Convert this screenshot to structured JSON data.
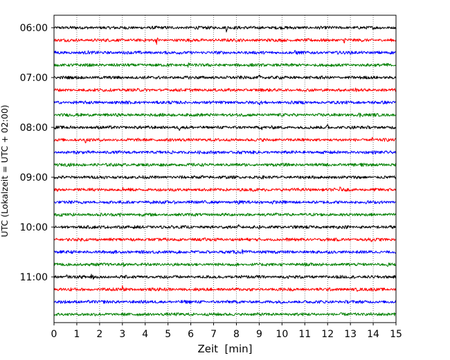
{
  "chart_data": {
    "type": "line",
    "title": "",
    "xlabel": "Zeit  [min]",
    "ylabel": "UTC (Lokalzeit = UTC + 02:00)",
    "xlim": [
      0,
      15
    ],
    "x_ticks": [
      "0",
      "1",
      "2",
      "3",
      "4",
      "5",
      "6",
      "7",
      "8",
      "9",
      "10",
      "11",
      "12",
      "13",
      "14",
      "15"
    ],
    "y_ticks": [
      "06:00",
      "07:00",
      "08:00",
      "09:00",
      "10:00",
      "11:00"
    ],
    "grid": "vertical dotted lines at each minute",
    "trace_colors": [
      "#000000",
      "#ff0000",
      "#0000ff",
      "#008000"
    ],
    "series": [
      {
        "start": "06:00",
        "color": "#000000",
        "events": [
          {
            "x": 7.55,
            "amp": 0.8
          },
          {
            "x": 2.2,
            "amp": 0.3
          },
          {
            "x": 5.2,
            "amp": 0.3
          },
          {
            "x": 9.0,
            "amp": 0.3
          },
          {
            "x": 10.6,
            "amp": 0.3
          }
        ]
      },
      {
        "start": "06:15",
        "color": "#ff0000",
        "events": [
          {
            "x": 4.5,
            "amp": 0.7
          },
          {
            "x": 12.75,
            "amp": 0.7
          },
          {
            "x": 9.3,
            "amp": 0.3
          }
        ]
      },
      {
        "start": "06:30",
        "color": "#0000ff",
        "events": [
          {
            "x": 10.6,
            "amp": 0.7
          },
          {
            "x": 1.5,
            "amp": 0.35
          },
          {
            "x": 6.8,
            "amp": 0.25
          },
          {
            "x": 13.5,
            "amp": 0.25
          }
        ]
      },
      {
        "start": "06:45",
        "color": "#008000",
        "events": [
          {
            "x": 5.9,
            "amp": 0.6
          },
          {
            "x": 14.6,
            "amp": 0.6
          },
          {
            "x": 2.4,
            "amp": 0.3
          },
          {
            "x": 8.7,
            "amp": 0.3
          }
        ]
      },
      {
        "start": "07:00",
        "color": "#000000",
        "events": [
          {
            "x": 9.0,
            "amp": 0.6
          },
          {
            "x": 2.8,
            "amp": 0.3
          },
          {
            "x": 5.7,
            "amp": 0.3
          },
          {
            "x": 12.1,
            "amp": 0.25
          }
        ]
      },
      {
        "start": "07:15",
        "color": "#ff0000",
        "events": [
          {
            "x": 13.2,
            "amp": 0.6
          },
          {
            "x": 2.2,
            "amp": 0.35
          },
          {
            "x": 7.8,
            "amp": 0.25
          },
          {
            "x": 10.0,
            "amp": 0.25
          }
        ]
      },
      {
        "start": "07:30",
        "color": "#0000ff",
        "events": [
          {
            "x": 9.0,
            "amp": 0.55
          },
          {
            "x": 3.0,
            "amp": 0.3
          },
          {
            "x": 5.5,
            "amp": 0.25
          },
          {
            "x": 13.0,
            "amp": 0.3
          }
        ]
      },
      {
        "start": "07:45",
        "color": "#008000",
        "events": [
          {
            "x": 13.4,
            "amp": 0.6
          },
          {
            "x": 3.2,
            "amp": 0.3
          },
          {
            "x": 7.4,
            "amp": 0.3
          },
          {
            "x": 9.6,
            "amp": 0.25
          }
        ]
      },
      {
        "start": "08:00",
        "color": "#000000",
        "events": [
          {
            "x": 5.5,
            "amp": 0.6
          },
          {
            "x": 12.0,
            "amp": 0.65
          },
          {
            "x": 9.1,
            "amp": 0.5
          },
          {
            "x": 2.6,
            "amp": 0.3
          },
          {
            "x": 7.2,
            "amp": 0.3
          }
        ]
      },
      {
        "start": "08:15",
        "color": "#ff0000",
        "events": [
          {
            "x": 1.4,
            "amp": 0.7
          },
          {
            "x": 4.5,
            "amp": 0.5
          },
          {
            "x": 13.95,
            "amp": 0.5
          },
          {
            "x": 8.0,
            "amp": 0.25
          },
          {
            "x": 10.5,
            "amp": 0.25
          }
        ]
      },
      {
        "start": "08:30",
        "color": "#0000ff",
        "events": [
          {
            "x": 8.25,
            "amp": 0.5
          },
          {
            "x": 2.3,
            "amp": 0.3
          },
          {
            "x": 5.0,
            "amp": 0.25
          },
          {
            "x": 11.5,
            "amp": 0.25
          }
        ]
      },
      {
        "start": "08:45",
        "color": "#008000",
        "events": [
          {
            "x": 13.5,
            "amp": 0.65
          },
          {
            "x": 3.8,
            "amp": 0.3
          },
          {
            "x": 6.3,
            "amp": 0.25
          },
          {
            "x": 9.9,
            "amp": 0.25
          }
        ]
      },
      {
        "start": "09:00",
        "color": "#000000",
        "events": [
          {
            "x": 6.5,
            "amp": 0.6
          },
          {
            "x": 13.4,
            "amp": 0.6
          },
          {
            "x": 2.1,
            "amp": 0.3
          },
          {
            "x": 9.8,
            "amp": 0.3
          }
        ]
      },
      {
        "start": "09:15",
        "color": "#ff0000",
        "events": [
          {
            "x": 3.0,
            "amp": 0.7
          },
          {
            "x": 12.55,
            "amp": 0.55
          },
          {
            "x": 0.15,
            "amp": 0.5
          },
          {
            "x": 2.2,
            "amp": 0.35
          },
          {
            "x": 7.1,
            "amp": 0.25
          }
        ]
      },
      {
        "start": "09:30",
        "color": "#0000ff",
        "events": [
          {
            "x": 8.1,
            "amp": 0.55
          },
          {
            "x": 9.6,
            "amp": 0.5
          },
          {
            "x": 5.3,
            "amp": 0.3
          },
          {
            "x": 11.3,
            "amp": 0.25
          }
        ]
      },
      {
        "start": "09:45",
        "color": "#008000",
        "events": [
          {
            "x": 2.9,
            "amp": 0.5
          },
          {
            "x": 9.35,
            "amp": 0.5
          },
          {
            "x": 13.4,
            "amp": 0.4
          },
          {
            "x": 6.2,
            "amp": 0.25
          }
        ]
      },
      {
        "start": "10:00",
        "color": "#000000",
        "events": [
          {
            "x": 8.1,
            "amp": 0.5
          },
          {
            "x": 9.0,
            "amp": 0.45
          },
          {
            "x": 2.5,
            "amp": 0.25
          },
          {
            "x": 11.5,
            "amp": 0.3
          },
          {
            "x": 14.0,
            "amp": 0.25
          }
        ]
      },
      {
        "start": "10:15",
        "color": "#ff0000",
        "events": [
          {
            "x": 3.2,
            "amp": 0.55
          },
          {
            "x": 13.9,
            "amp": 0.6
          },
          {
            "x": 7.1,
            "amp": 0.3
          },
          {
            "x": 9.9,
            "amp": 0.3
          }
        ]
      },
      {
        "start": "10:30",
        "color": "#0000ff",
        "events": [
          {
            "x": 8.25,
            "amp": 0.5
          },
          {
            "x": 2.3,
            "amp": 0.3
          },
          {
            "x": 5.4,
            "amp": 0.3
          },
          {
            "x": 10.8,
            "amp": 0.25
          }
        ]
      },
      {
        "start": "10:45",
        "color": "#008000",
        "events": [
          {
            "x": 3.05,
            "amp": 0.45
          },
          {
            "x": 14.6,
            "amp": 0.55
          },
          {
            "x": 8.0,
            "amp": 0.3
          },
          {
            "x": 11.0,
            "amp": 0.3
          }
        ]
      },
      {
        "start": "11:00",
        "color": "#000000",
        "events": [
          {
            "x": 1.65,
            "amp": 1.1
          },
          {
            "x": 0.55,
            "amp": 0.5
          },
          {
            "x": 8.2,
            "amp": 0.4
          },
          {
            "x": 3.7,
            "amp": 0.3
          },
          {
            "x": 12.3,
            "amp": 0.3
          }
        ]
      },
      {
        "start": "11:15",
        "color": "#ff0000",
        "events": [
          {
            "x": 3.0,
            "amp": 0.7
          },
          {
            "x": 0.7,
            "amp": 0.5
          },
          {
            "x": 6.6,
            "amp": 0.3
          },
          {
            "x": 13.3,
            "amp": 0.35
          }
        ]
      },
      {
        "start": "11:30",
        "color": "#0000ff",
        "events": [
          {
            "x": 8.2,
            "amp": 0.45
          },
          {
            "x": 1.5,
            "amp": 0.3
          },
          {
            "x": 5.6,
            "amp": 0.35
          },
          {
            "x": 12.8,
            "amp": 0.25
          }
        ]
      },
      {
        "start": "11:45",
        "color": "#008000",
        "events": [
          {
            "x": 3.45,
            "amp": 0.45
          },
          {
            "x": 1.6,
            "amp": 0.3
          },
          {
            "x": 6.9,
            "amp": 0.25
          },
          {
            "x": 10.4,
            "amp": 0.25
          },
          {
            "x": 13.9,
            "amp": 0.3
          }
        ]
      }
    ]
  }
}
